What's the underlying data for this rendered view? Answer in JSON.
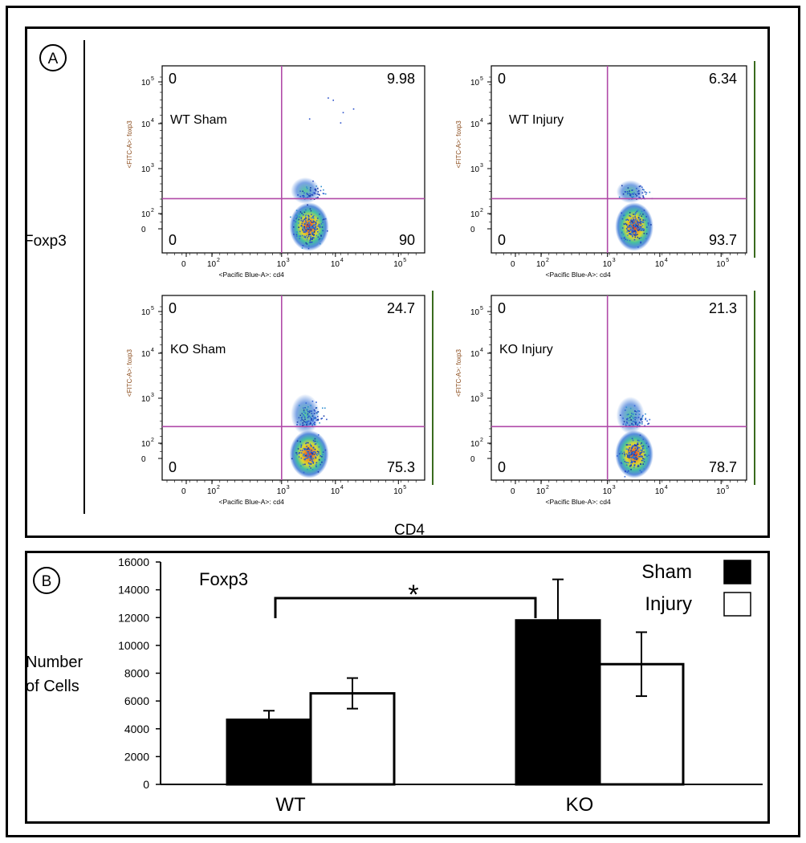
{
  "panel_a": {
    "label": "A",
    "y_axis_label": "Foxp3",
    "x_axis_label": "CD4",
    "plot_y_tick_labels": [
      "10",
      "5",
      "10",
      "4",
      "10",
      "3",
      "10",
      "2",
      "0"
    ],
    "plot_x_tick_labels": [
      "0",
      "10",
      "2",
      "10",
      "3",
      "10",
      "4",
      "10",
      "5"
    ],
    "plot_y_axis_title": "<FITC-A>: foxp3",
    "plot_x_axis_title": "<Pacific Blue-A>: cd4",
    "plots": [
      {
        "title": "WT Sham",
        "q_upper_left": "0",
        "q_upper_right": "9.98",
        "q_lower_left": "0",
        "q_lower_right": "90"
      },
      {
        "title": "WT Injury",
        "q_upper_left": "0",
        "q_upper_right": "6.34",
        "q_lower_left": "0",
        "q_lower_right": "93.7"
      },
      {
        "title": "KO Sham",
        "q_upper_left": "0",
        "q_upper_right": "24.7",
        "q_lower_left": "0",
        "q_lower_right": "75.3"
      },
      {
        "title": "KO Injury",
        "q_upper_left": "0",
        "q_upper_right": "21.3",
        "q_lower_left": "0",
        "q_lower_right": "78.7"
      }
    ]
  },
  "chart_data": {
    "type": "bar",
    "label": "B",
    "title": "Foxp3",
    "ylabel_line1": "Number",
    "ylabel_line2": "of Cells",
    "xlabel": "",
    "categories": [
      "WT",
      "KO"
    ],
    "series": [
      {
        "name": "Sham",
        "values": [
          4650,
          11800
        ],
        "errors": [
          650,
          2950
        ],
        "color": "#000000"
      },
      {
        "name": "Injury",
        "values": [
          6550,
          8650
        ],
        "errors": [
          1100,
          2300
        ],
        "color": "#ffffff"
      }
    ],
    "ylim": [
      0,
      16000
    ],
    "yticks": [
      0,
      2000,
      4000,
      6000,
      8000,
      10000,
      12000,
      14000,
      16000
    ],
    "legend_position": "top-right",
    "significance_marker": "*"
  }
}
